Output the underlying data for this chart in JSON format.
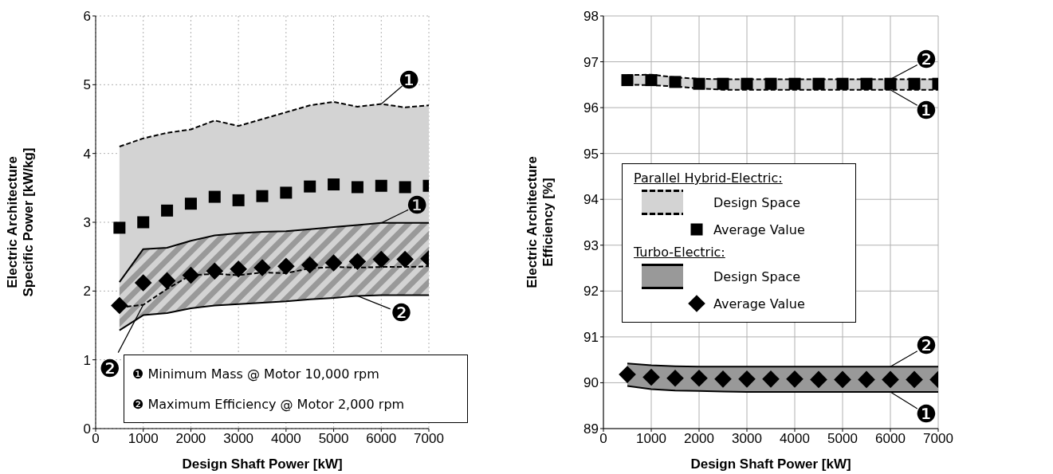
{
  "chart_data": [
    {
      "type": "area",
      "xlabel": "Design Shaft Power [kW]",
      "ylabel": "Electric Architecture\nSpecific Power [kW/kg]",
      "x": [
        500,
        1000,
        1500,
        2000,
        2500,
        3000,
        3500,
        4000,
        4500,
        5000,
        5500,
        6000,
        6500,
        7000
      ],
      "xlim": [
        0,
        7000
      ],
      "xticks": [
        0,
        1000,
        2000,
        3000,
        4000,
        5000,
        6000,
        7000
      ],
      "ylim": [
        0,
        6
      ],
      "yticks": [
        0,
        1,
        2,
        3,
        4,
        5,
        6
      ],
      "grid": true,
      "series": [
        {
          "color": "#d3d3d3",
          "line_style": "dashed",
          "values": [
            4.1,
            4.22,
            4.3,
            4.35,
            4.48,
            4.4,
            4.5,
            4.6,
            4.7,
            4.75,
            4.68,
            4.72,
            4.67,
            4.7
          ]
        },
        {
          "type": "line",
          "color": "#000000",
          "line_style": "dashed",
          "values": [
            1.76,
            1.8,
            2.03,
            2.23,
            2.25,
            2.23,
            2.27,
            2.26,
            2.33,
            2.35,
            2.34,
            2.35,
            2.35,
            2.36
          ]
        },
        {
          "color": "#999999",
          "line_style": "solid",
          "values": [
            2.13,
            2.61,
            2.63,
            2.73,
            2.81,
            2.84,
            2.86,
            2.87,
            2.9,
            2.93,
            2.96,
            2.99,
            2.99,
            2.99
          ]
        },
        {
          "type": "line",
          "color": "#000000",
          "line_style": "solid",
          "values": [
            1.43,
            1.65,
            1.68,
            1.75,
            1.79,
            1.81,
            1.83,
            1.85,
            1.88,
            1.9,
            1.93,
            1.94,
            1.94,
            1.94
          ]
        },
        {
          "type": "scatter",
          "marker": "square",
          "color": "#000000",
          "values": [
            2.92,
            3.0,
            3.17,
            3.27,
            3.37,
            3.32,
            3.38,
            3.43,
            3.52,
            3.55,
            3.51,
            3.53,
            3.51,
            3.53
          ]
        },
        {
          "type": "scatter",
          "marker": "diamond",
          "color": "#000000",
          "values": [
            1.79,
            2.12,
            2.15,
            2.23,
            2.29,
            2.32,
            2.34,
            2.36,
            2.38,
            2.41,
            2.43,
            2.46,
            2.46,
            2.47
          ]
        }
      ],
      "annotations": [
        {
          "text": "❶",
          "x": 6000,
          "y": 4.72
        },
        {
          "text": "❶",
          "x": 6000,
          "y": 2.99
        },
        {
          "text": "❷",
          "x": 5500,
          "y": 1.93
        },
        {
          "text": "❷",
          "x": 1000,
          "y": 1.8
        },
        "❶ Minimum Mass @ Motor 10,000 rpm",
        "❷ Maximum Efficiency  @ Motor 2,000 rpm"
      ]
    },
    {
      "type": "area",
      "xlabel": "Design Shaft Power [kW]",
      "ylabel": "Electric Architecture\nEfficiency [%]",
      "x": [
        500,
        1000,
        1500,
        2000,
        2500,
        3000,
        3500,
        4000,
        4500,
        5000,
        5500,
        6000,
        6500,
        7000
      ],
      "xlim": [
        0,
        7000
      ],
      "xticks": [
        0,
        1000,
        2000,
        3000,
        4000,
        5000,
        6000,
        7000
      ],
      "ylim": [
        89,
        98
      ],
      "yticks": [
        89,
        90,
        91,
        92,
        93,
        94,
        95,
        96,
        97,
        98
      ],
      "grid": true,
      "legend": "left",
      "series": [
        {
          "name": "Design Space",
          "color": "#d3d3d3",
          "line_style": "dashed",
          "values": [
            96.71,
            96.72,
            96.66,
            96.63,
            96.62,
            96.62,
            96.62,
            96.62,
            96.62,
            96.62,
            96.62,
            96.62,
            96.62,
            96.62
          ]
        },
        {
          "type": "line",
          "color": "#000000",
          "line_style": "dashed",
          "values": [
            96.5,
            96.49,
            96.46,
            96.42,
            96.39,
            96.39,
            96.39,
            96.39,
            96.39,
            96.39,
            96.39,
            96.39,
            96.39,
            96.39
          ]
        },
        {
          "type": "scatter",
          "name": "Average Value",
          "marker": "square",
          "color": "#000000",
          "values": [
            96.6,
            96.6,
            96.56,
            96.52,
            96.52,
            96.52,
            96.52,
            96.52,
            96.52,
            96.52,
            96.52,
            96.52,
            96.52,
            96.52
          ]
        },
        {
          "name": "Design Space",
          "color": "#999999",
          "line_style": "solid",
          "values": [
            90.42,
            90.38,
            90.36,
            90.35,
            90.35,
            90.35,
            90.35,
            90.35,
            90.35,
            90.35,
            90.35,
            90.35,
            90.35,
            90.35
          ]
        },
        {
          "type": "line",
          "color": "#000000",
          "line_style": "solid",
          "values": [
            89.93,
            89.86,
            89.83,
            89.82,
            89.81,
            89.8,
            89.8,
            89.8,
            89.8,
            89.8,
            89.8,
            89.8,
            89.8,
            89.8
          ]
        },
        {
          "type": "scatter",
          "name": "Average Value",
          "marker": "diamond",
          "color": "#000000",
          "values": [
            90.18,
            90.12,
            90.1,
            90.1,
            90.08,
            90.08,
            90.08,
            90.08,
            90.07,
            90.07,
            90.07,
            90.07,
            90.07,
            90.07
          ]
        }
      ],
      "annotations": [
        {
          "text": "❷",
          "x": 6000,
          "y": 96.62
        },
        {
          "text": "❶",
          "x": 6000,
          "y": 96.39
        },
        {
          "text": "❷",
          "x": 6000,
          "y": 90.35
        },
        {
          "text": "❶",
          "x": 6000,
          "y": 89.8
        },
        "Parallel Hybrid-Electric:",
        "Turbo-Electric:"
      ]
    }
  ]
}
